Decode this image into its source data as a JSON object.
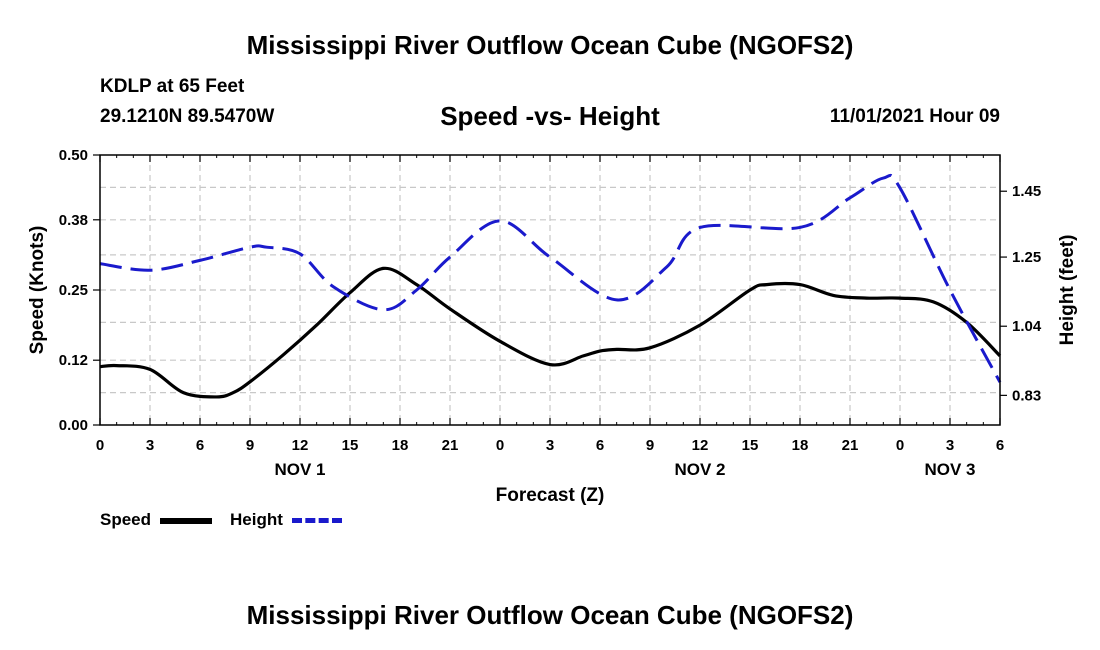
{
  "page": {
    "title": "Mississippi River Outflow Ocean Cube (NGOFS2)",
    "footer_title": "Mississippi River Outflow Ocean Cube (NGOFS2)",
    "station": "KDLP at 65 Feet",
    "location": "29.1210N  89.5470W",
    "datetime": "11/01/2021 Hour 09"
  },
  "chart_data": {
    "type": "line",
    "title": "Speed -vs- Height",
    "xlabel": "Forecast (Z)",
    "ylabel": "Speed (Knots)",
    "y2label": "Height (feet)",
    "xlim": [
      0,
      54
    ],
    "ylim": [
      0,
      0.5
    ],
    "y2lim": [
      0.74,
      1.56
    ],
    "grid": true,
    "x_ticks": [
      0,
      3,
      6,
      9,
      12,
      15,
      18,
      21,
      24,
      27,
      30,
      33,
      36,
      39,
      42,
      45,
      48,
      51,
      54
    ],
    "x_tick_labels": [
      "0",
      "3",
      "6",
      "9",
      "12",
      "15",
      "18",
      "21",
      "0",
      "3",
      "6",
      "9",
      "12",
      "15",
      "18",
      "21",
      "0",
      "3",
      "6"
    ],
    "date_labels": [
      {
        "x": 12,
        "label": "NOV 1"
      },
      {
        "x": 36,
        "label": "NOV 2"
      },
      {
        "x": 51,
        "label": "NOV 3"
      }
    ],
    "y_ticks": [
      0.0,
      0.12,
      0.25,
      0.38,
      0.5
    ],
    "y_tick_labels": [
      "0.00",
      "0.12",
      "0.25",
      "0.38",
      "0.50"
    ],
    "y2_ticks": [
      0.83,
      1.04,
      1.25,
      1.45
    ],
    "y2_tick_labels": [
      "0.83",
      "1.04",
      "1.25",
      "1.45"
    ],
    "series": [
      {
        "name": "Speed",
        "axis": "left",
        "color": "#000000",
        "dash": "solid",
        "x": [
          0,
          1,
          3,
          5,
          7,
          8,
          9,
          11,
          13,
          15,
          17,
          19,
          21,
          24,
          27,
          29,
          30,
          31,
          33,
          36,
          39,
          40,
          42,
          44,
          46,
          48,
          50,
          52,
          54
        ],
        "values": [
          0.108,
          0.11,
          0.103,
          0.06,
          0.052,
          0.06,
          0.08,
          0.13,
          0.185,
          0.245,
          0.29,
          0.26,
          0.215,
          0.155,
          0.112,
          0.128,
          0.137,
          0.14,
          0.143,
          0.185,
          0.25,
          0.26,
          0.26,
          0.24,
          0.235,
          0.235,
          0.228,
          0.19,
          0.128
        ]
      },
      {
        "name": "Height",
        "axis": "right",
        "color": "#1a1acc",
        "dash": "dashed",
        "x": [
          0,
          3,
          6,
          9,
          10,
          12,
          14,
          17,
          19,
          21,
          24,
          27,
          31,
          34,
          36,
          42,
          45,
          47,
          48,
          51,
          54
        ],
        "values": [
          1.23,
          1.21,
          1.24,
          1.28,
          1.28,
          1.26,
          1.16,
          1.09,
          1.15,
          1.25,
          1.36,
          1.25,
          1.12,
          1.22,
          1.34,
          1.34,
          1.43,
          1.49,
          1.46,
          1.15,
          0.87
        ]
      }
    ]
  }
}
